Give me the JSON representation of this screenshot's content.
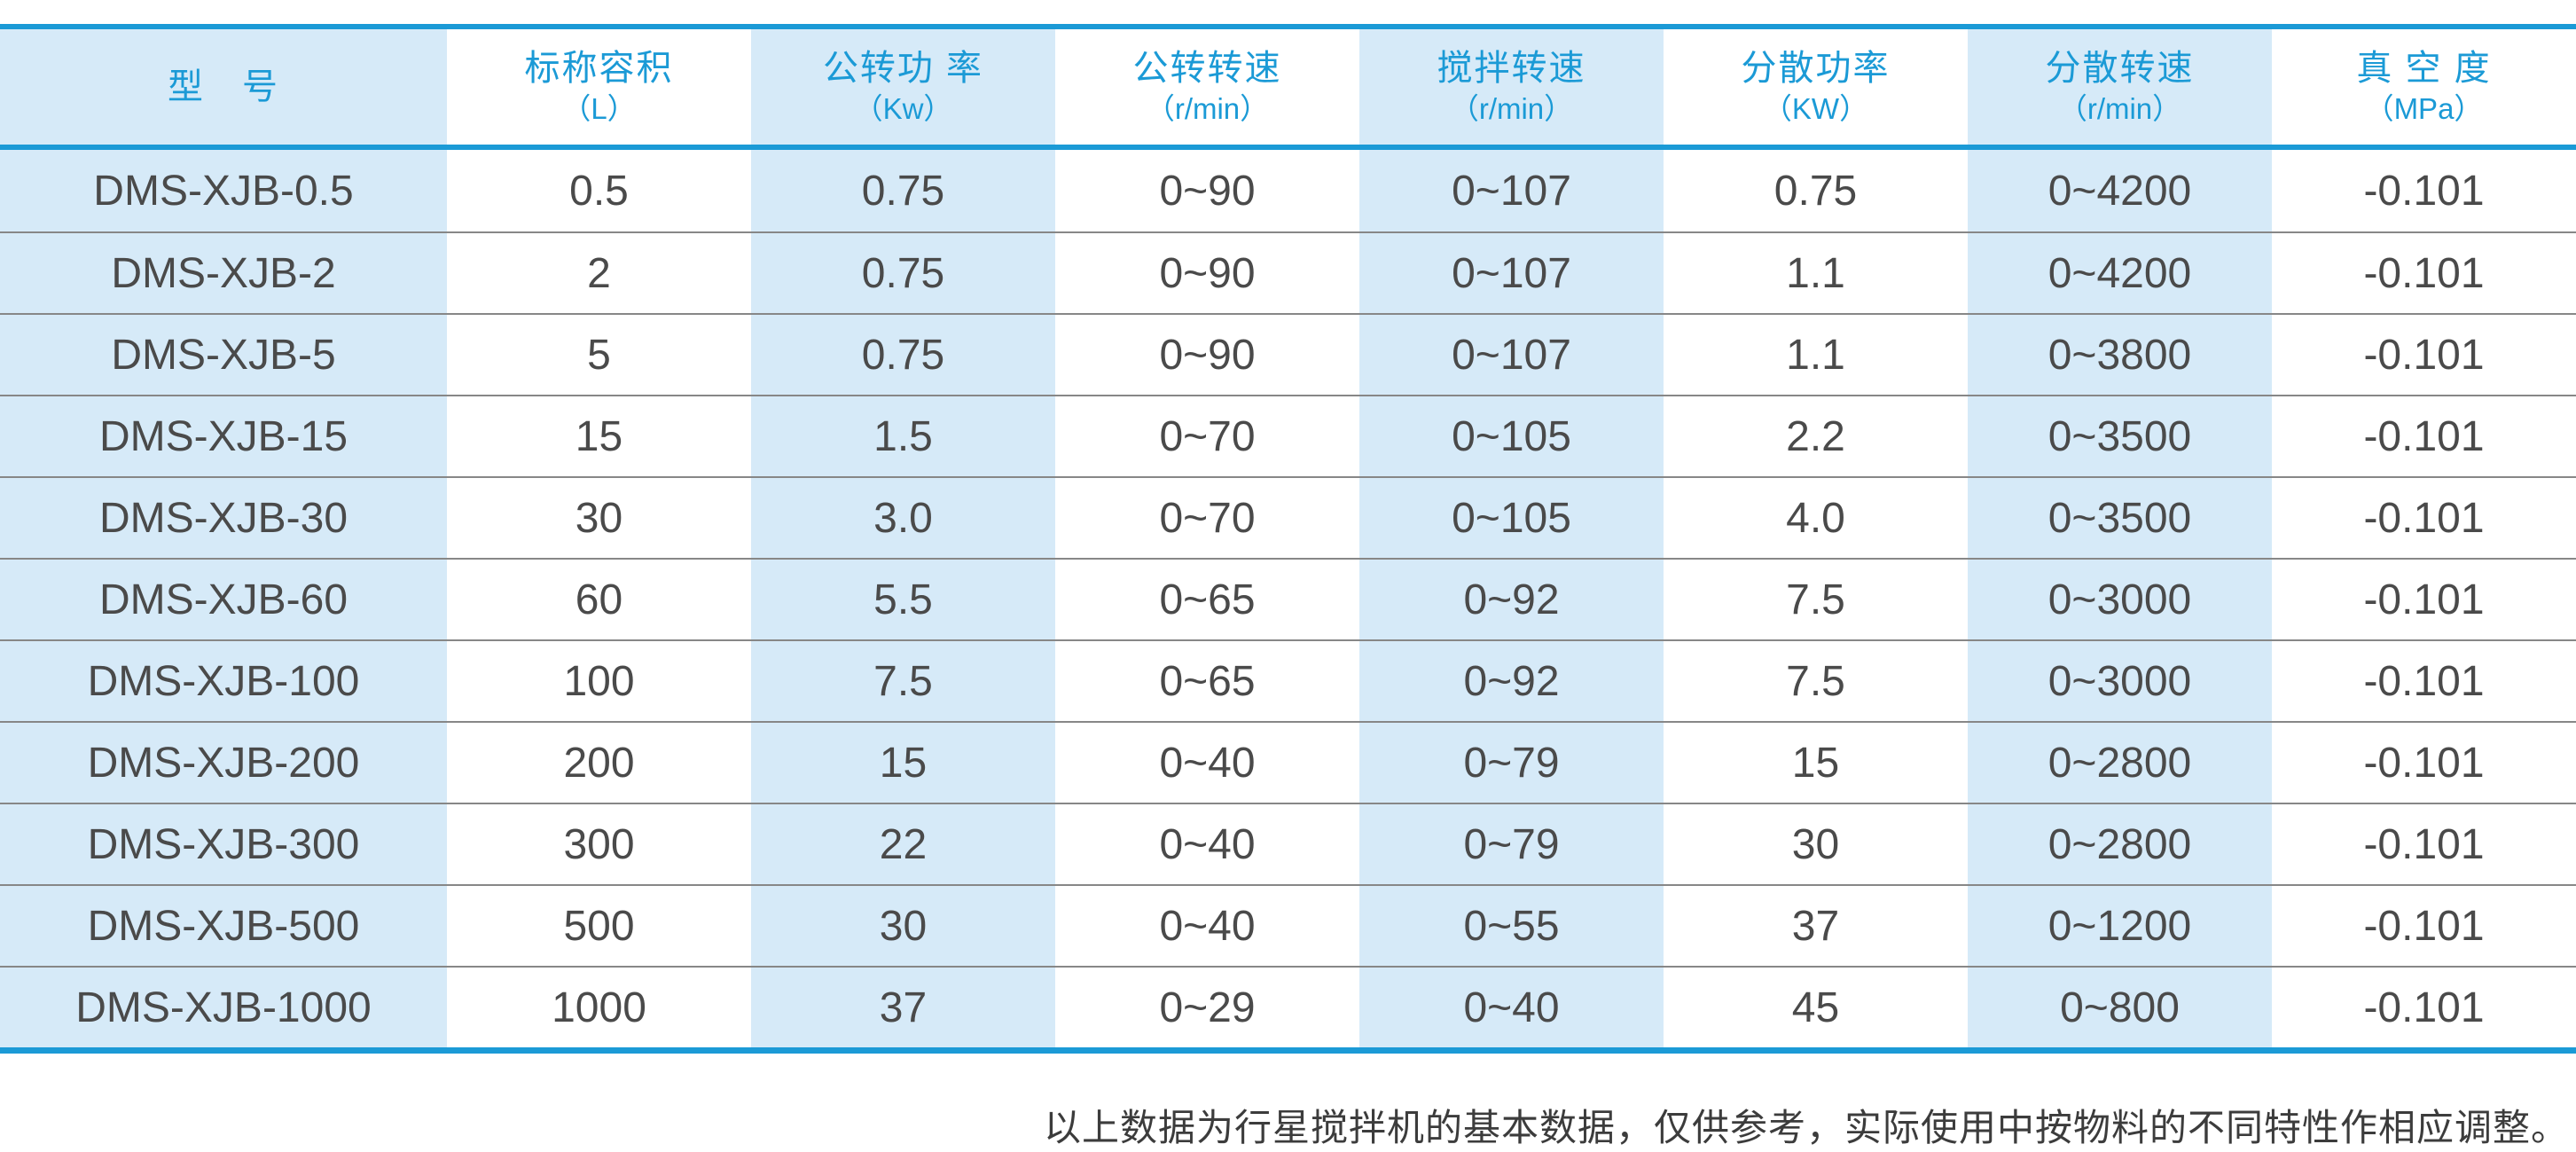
{
  "colors": {
    "accent": "#1b9ad6",
    "stripe": "#d6eaf8",
    "body_text": "#4a4a4a"
  },
  "table": {
    "columns": [
      {
        "label": "型　号",
        "unit": ""
      },
      {
        "label": "标称容积",
        "unit": "（L）"
      },
      {
        "label": "公转功 率",
        "unit": "（Kw）"
      },
      {
        "label": "公转转速",
        "unit": "（r/min）"
      },
      {
        "label": "搅拌转速",
        "unit": "（r/min）"
      },
      {
        "label": "分散功率",
        "unit": "（KW）"
      },
      {
        "label": "分散转速",
        "unit": "（r/min）"
      },
      {
        "label": "真 空 度",
        "unit": "（MPa）"
      }
    ],
    "rows": [
      [
        "DMS-XJB-0.5",
        "0.5",
        "0.75",
        "0~90",
        "0~107",
        "0.75",
        "0~4200",
        "-0.101"
      ],
      [
        "DMS-XJB-2",
        "2",
        "0.75",
        "0~90",
        "0~107",
        "1.1",
        "0~4200",
        "-0.101"
      ],
      [
        "DMS-XJB-5",
        "5",
        "0.75",
        "0~90",
        "0~107",
        "1.1",
        "0~3800",
        "-0.101"
      ],
      [
        "DMS-XJB-15",
        "15",
        "1.5",
        "0~70",
        "0~105",
        "2.2",
        "0~3500",
        "-0.101"
      ],
      [
        "DMS-XJB-30",
        "30",
        "3.0",
        "0~70",
        "0~105",
        "4.0",
        "0~3500",
        "-0.101"
      ],
      [
        "DMS-XJB-60",
        "60",
        "5.5",
        "0~65",
        "0~92",
        "7.5",
        "0~3000",
        "-0.101"
      ],
      [
        "DMS-XJB-100",
        "100",
        "7.5",
        "0~65",
        "0~92",
        "7.5",
        "0~3000",
        "-0.101"
      ],
      [
        "DMS-XJB-200",
        "200",
        "15",
        "0~40",
        "0~79",
        "15",
        "0~2800",
        "-0.101"
      ],
      [
        "DMS-XJB-300",
        "300",
        "22",
        "0~40",
        "0~79",
        "30",
        "0~2800",
        "-0.101"
      ],
      [
        "DMS-XJB-500",
        "500",
        "30",
        "0~40",
        "0~55",
        "37",
        "0~1200",
        "-0.101"
      ],
      [
        "DMS-XJB-1000",
        "1000",
        "37",
        "0~29",
        "0~40",
        "45",
        "0~800",
        "-0.101"
      ]
    ]
  },
  "footer": {
    "note": "以上数据为行星搅拌机的基本数据，仅供参考，实际使用中按物料的不同特性作相应调整。"
  }
}
